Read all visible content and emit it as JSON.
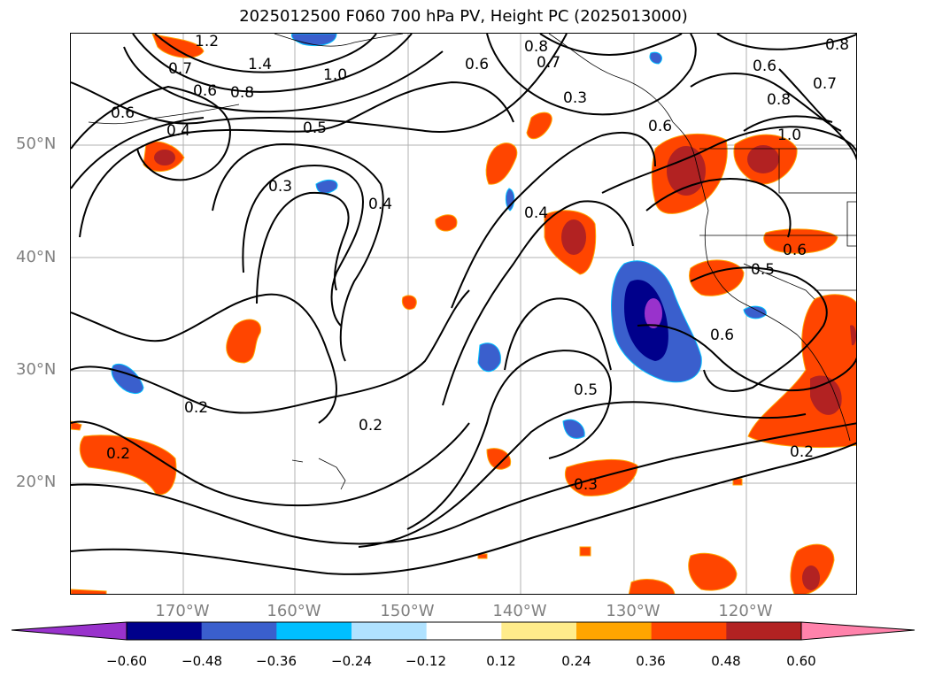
{
  "title": "2025012500 F060 700 hPa PV, Height PC (2025013000)",
  "lat_labels": [
    "50°N",
    "40°N",
    "30°N",
    "20°N"
  ],
  "lon_labels": [
    "170°W",
    "160°W",
    "150°W",
    "140°W",
    "130°W",
    "120°W"
  ],
  "contour_labels": [
    "1.2",
    "1.4",
    "1.0",
    "0.8",
    "0.7",
    "0.6",
    "0.4",
    "0.6",
    "0.5",
    "0.3",
    "0.4",
    "0.6",
    "0.8",
    "0.7",
    "0.3",
    "0.4",
    "0.5",
    "0.6",
    "0.5",
    "0.6",
    "0.2",
    "0.2",
    "0.2",
    "0.3",
    "0.2",
    "0.8",
    "0.7",
    "0.8",
    "1.0",
    "0.6",
    "0.6"
  ],
  "colorbar": {
    "colors": [
      "#9932CC",
      "#00008B",
      "#3A5FCD",
      "#00BFFF",
      "#B0E2FF",
      "#FFFFFF",
      "#FFEC8B",
      "#FFA500",
      "#FF4500",
      "#B22222",
      "#FF82AB"
    ],
    "ticks": [
      "−0.60",
      "−0.48",
      "−0.36",
      "−0.24",
      "−0.12",
      "0.12",
      "0.24",
      "0.36",
      "0.48",
      "0.60"
    ]
  },
  "features": {
    "positive_fill_color": "#FF4500",
    "strong_positive_color": "#B22222",
    "negative_fill_color": "#3A5FCD",
    "strong_negative_color": "#00008B"
  }
}
